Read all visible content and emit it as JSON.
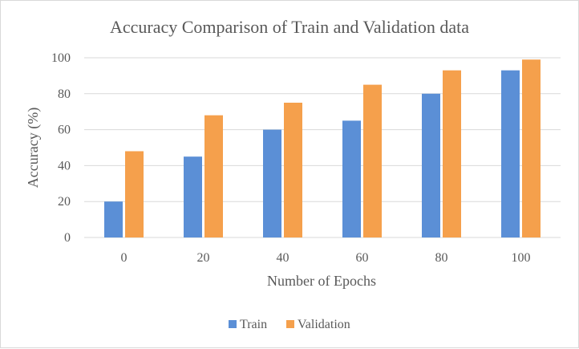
{
  "chart_data": {
    "type": "bar",
    "title": "Accuracy Comparison of Train and Validation data",
    "xlabel": "Number of Epochs",
    "ylabel": "Accuracy (%)",
    "categories": [
      "0",
      "20",
      "40",
      "60",
      "80",
      "100"
    ],
    "series": [
      {
        "name": "Train",
        "values": [
          20,
          45,
          60,
          65,
          80,
          93
        ],
        "color": "#5b8fd6"
      },
      {
        "name": "Validation",
        "values": [
          48,
          68,
          75,
          85,
          93,
          99
        ],
        "color": "#f5a04c"
      }
    ],
    "ylim": [
      0,
      100
    ],
    "yticks": [
      "0",
      "20",
      "40",
      "60",
      "80",
      "100"
    ],
    "grid": true,
    "legend_position": "bottom"
  }
}
